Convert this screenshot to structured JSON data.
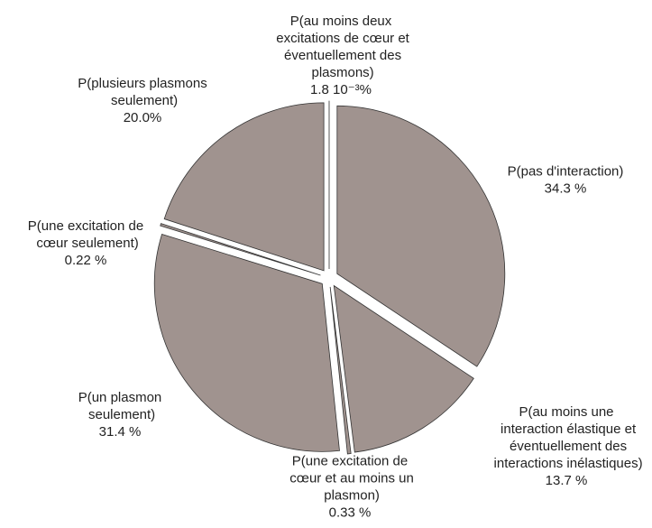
{
  "chart_data": {
    "type": "pie",
    "categories": [
      "P(pas d'interaction)",
      "P(au moins une interaction élastique et éventuellement des interactions inélastiques)",
      "P(une excitation de cœur et au moins un plasmon)",
      "P(un plasmon seulement)",
      "P(une excitation de cœur seulement)",
      "P(plusieurs plasmons seulement)",
      "P(au moins deux excitations de cœur et éventuellement des plasmons)"
    ],
    "values": [
      34.3,
      13.7,
      0.33,
      31.4,
      0.22,
      20.0,
      0.0018
    ],
    "value_labels": [
      "34.3 %",
      "13.7 %",
      "0.33 %",
      "31.4 %",
      "0.22 %",
      "20.0%",
      "1.8 10⁻³%"
    ],
    "color": "#a0938f"
  }
}
